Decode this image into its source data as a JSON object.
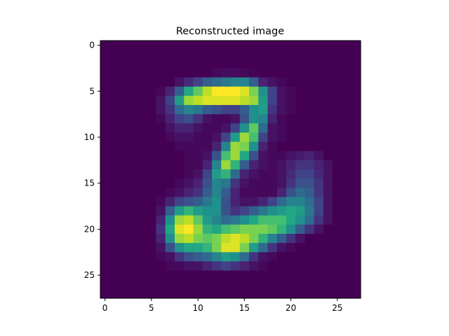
{
  "chart_data": {
    "type": "heatmap",
    "title": "Reconstructed image",
    "xlabel": "",
    "ylabel": "",
    "rows": 28,
    "cols": 28,
    "xlim": [
      -0.5,
      27.5
    ],
    "ylim": [
      27.5,
      -0.5
    ],
    "xticks": [
      0,
      5,
      10,
      15,
      20,
      25
    ],
    "yticks": [
      0,
      5,
      10,
      15,
      20,
      25
    ],
    "colormap": "viridis",
    "vmin": 0,
    "vmax": 1,
    "grid": false,
    "values": [
      [
        0,
        0,
        0,
        0,
        0,
        0,
        0,
        0,
        0,
        0,
        0,
        0,
        0,
        0,
        0,
        0,
        0,
        0,
        0,
        0,
        0,
        0,
        0,
        0,
        0,
        0,
        0,
        0
      ],
      [
        0,
        0,
        0,
        0,
        0,
        0,
        0,
        0,
        0,
        0,
        0,
        0,
        0,
        0,
        0,
        0,
        0,
        0,
        0,
        0,
        0,
        0,
        0,
        0,
        0,
        0,
        0,
        0
      ],
      [
        0,
        0,
        0,
        0,
        0,
        0,
        0,
        0,
        0,
        0,
        0,
        0,
        0,
        0,
        0,
        0,
        0,
        0,
        0,
        0,
        0,
        0,
        0,
        0,
        0,
        0,
        0,
        0
      ],
      [
        0,
        0,
        0,
        0,
        0,
        0,
        0,
        0,
        0,
        0,
        0,
        0,
        0.02,
        0.03,
        0.03,
        0.02,
        0.01,
        0,
        0,
        0,
        0,
        0,
        0,
        0,
        0,
        0,
        0,
        0
      ],
      [
        0,
        0,
        0,
        0,
        0,
        0,
        0,
        0,
        0.05,
        0.12,
        0.2,
        0.3,
        0.35,
        0.4,
        0.45,
        0.45,
        0.3,
        0.1,
        0.05,
        0.02,
        0,
        0,
        0,
        0,
        0,
        0,
        0,
        0
      ],
      [
        0,
        0,
        0,
        0,
        0,
        0,
        0.02,
        0.1,
        0.3,
        0.6,
        0.75,
        0.9,
        1,
        1,
        1,
        0.95,
        0.8,
        0.5,
        0.2,
        0.05,
        0.02,
        0,
        0,
        0,
        0,
        0,
        0,
        0
      ],
      [
        0,
        0,
        0,
        0,
        0,
        0,
        0.05,
        0.2,
        0.55,
        0.85,
        0.9,
        0.95,
        0.95,
        0.95,
        0.95,
        0.9,
        0.85,
        0.55,
        0.2,
        0.05,
        0.02,
        0,
        0,
        0,
        0,
        0,
        0,
        0
      ],
      [
        0,
        0,
        0,
        0,
        0,
        0,
        0.05,
        0.15,
        0.35,
        0.45,
        0.4,
        0.3,
        0.25,
        0.2,
        0.2,
        0.3,
        0.5,
        0.55,
        0.15,
        0.05,
        0.02,
        0,
        0,
        0,
        0,
        0,
        0,
        0
      ],
      [
        0,
        0,
        0,
        0,
        0,
        0,
        0.02,
        0.1,
        0.2,
        0.25,
        0.15,
        0.05,
        0.02,
        0.02,
        0.05,
        0.25,
        0.5,
        0.45,
        0.1,
        0.02,
        0,
        0,
        0,
        0,
        0,
        0,
        0,
        0
      ],
      [
        0,
        0,
        0,
        0,
        0,
        0,
        0,
        0.05,
        0.1,
        0.1,
        0.05,
        0.02,
        0.02,
        0.05,
        0.2,
        0.5,
        0.75,
        0.35,
        0.05,
        0.02,
        0,
        0,
        0,
        0,
        0,
        0,
        0,
        0
      ],
      [
        0,
        0,
        0,
        0,
        0,
        0,
        0,
        0.02,
        0.05,
        0.05,
        0.02,
        0.02,
        0.05,
        0.2,
        0.55,
        0.85,
        0.7,
        0.2,
        0.05,
        0.02,
        0,
        0,
        0,
        0,
        0,
        0,
        0,
        0
      ],
      [
        0,
        0,
        0,
        0,
        0,
        0,
        0,
        0,
        0.02,
        0.02,
        0.02,
        0.02,
        0.1,
        0.45,
        0.85,
        0.8,
        0.5,
        0.1,
        0.02,
        0,
        0,
        0,
        0,
        0,
        0,
        0,
        0,
        0
      ],
      [
        0,
        0,
        0,
        0,
        0,
        0,
        0,
        0,
        0,
        0.02,
        0.02,
        0.05,
        0.25,
        0.7,
        0.85,
        0.6,
        0.25,
        0.05,
        0.02,
        0.02,
        0.05,
        0.08,
        0.1,
        0.05,
        0,
        0,
        0,
        0
      ],
      [
        0,
        0,
        0,
        0,
        0,
        0,
        0,
        0,
        0,
        0.02,
        0.02,
        0.1,
        0.45,
        0.85,
        0.65,
        0.3,
        0.1,
        0.05,
        0.02,
        0.05,
        0.1,
        0.15,
        0.15,
        0.1,
        0.05,
        0,
        0,
        0
      ],
      [
        0,
        0,
        0,
        0,
        0,
        0,
        0,
        0,
        0,
        0.02,
        0.05,
        0.2,
        0.55,
        0.65,
        0.35,
        0.1,
        0.05,
        0.02,
        0.02,
        0.05,
        0.12,
        0.2,
        0.2,
        0.12,
        0.05,
        0,
        0,
        0
      ],
      [
        0,
        0,
        0,
        0,
        0,
        0,
        0,
        0,
        0.02,
        0.05,
        0.1,
        0.25,
        0.45,
        0.4,
        0.15,
        0.05,
        0.02,
        0.02,
        0.02,
        0.05,
        0.15,
        0.25,
        0.25,
        0.15,
        0.05,
        0,
        0,
        0
      ],
      [
        0,
        0,
        0,
        0,
        0,
        0,
        0,
        0.02,
        0.05,
        0.1,
        0.15,
        0.3,
        0.45,
        0.3,
        0.1,
        0.02,
        0.02,
        0.02,
        0.02,
        0.1,
        0.25,
        0.35,
        0.3,
        0.15,
        0.05,
        0,
        0,
        0
      ],
      [
        0,
        0,
        0,
        0,
        0,
        0,
        0.02,
        0.1,
        0.2,
        0.25,
        0.3,
        0.4,
        0.5,
        0.25,
        0.1,
        0.05,
        0.05,
        0.1,
        0.2,
        0.35,
        0.45,
        0.45,
        0.35,
        0.2,
        0.05,
        0,
        0,
        0
      ],
      [
        0,
        0,
        0,
        0,
        0,
        0,
        0.05,
        0.3,
        0.55,
        0.65,
        0.55,
        0.5,
        0.5,
        0.25,
        0.15,
        0.2,
        0.3,
        0.4,
        0.5,
        0.55,
        0.6,
        0.55,
        0.4,
        0.2,
        0.05,
        0,
        0,
        0
      ],
      [
        0,
        0,
        0,
        0,
        0,
        0,
        0.1,
        0.5,
        0.85,
        0.9,
        0.75,
        0.55,
        0.45,
        0.35,
        0.4,
        0.5,
        0.6,
        0.7,
        0.7,
        0.7,
        0.6,
        0.5,
        0.35,
        0.15,
        0.05,
        0,
        0,
        0
      ],
      [
        0,
        0,
        0,
        0,
        0,
        0,
        0.15,
        0.6,
        0.95,
        1,
        0.85,
        0.65,
        0.6,
        0.7,
        0.75,
        0.8,
        0.8,
        0.8,
        0.75,
        0.65,
        0.5,
        0.3,
        0.15,
        0.05,
        0,
        0,
        0,
        0
      ],
      [
        0,
        0,
        0,
        0,
        0,
        0,
        0.1,
        0.5,
        0.85,
        0.9,
        0.8,
        0.75,
        0.8,
        0.9,
        0.95,
        0.9,
        0.8,
        0.65,
        0.45,
        0.3,
        0.15,
        0.05,
        0,
        0,
        0,
        0,
        0,
        0
      ],
      [
        0,
        0,
        0,
        0,
        0,
        0,
        0.05,
        0.25,
        0.5,
        0.6,
        0.6,
        0.65,
        0.8,
        0.95,
        0.95,
        0.8,
        0.55,
        0.35,
        0.15,
        0.05,
        0.02,
        0,
        0,
        0,
        0,
        0,
        0,
        0
      ],
      [
        0,
        0,
        0,
        0,
        0,
        0,
        0.02,
        0.05,
        0.15,
        0.25,
        0.3,
        0.35,
        0.45,
        0.55,
        0.5,
        0.35,
        0.15,
        0.05,
        0.02,
        0,
        0,
        0,
        0,
        0,
        0,
        0,
        0,
        0
      ],
      [
        0,
        0,
        0,
        0,
        0,
        0,
        0,
        0.02,
        0.02,
        0.05,
        0.05,
        0.1,
        0.15,
        0.2,
        0.15,
        0.1,
        0.05,
        0.02,
        0,
        0,
        0,
        0,
        0,
        0,
        0,
        0,
        0,
        0
      ],
      [
        0,
        0,
        0,
        0,
        0,
        0,
        0,
        0,
        0,
        0,
        0,
        0,
        0,
        0,
        0,
        0,
        0,
        0,
        0,
        0,
        0,
        0,
        0,
        0,
        0,
        0,
        0,
        0
      ],
      [
        0,
        0,
        0,
        0,
        0,
        0,
        0,
        0,
        0,
        0,
        0,
        0,
        0,
        0,
        0,
        0,
        0,
        0,
        0,
        0,
        0,
        0,
        0,
        0,
        0,
        0,
        0,
        0
      ],
      [
        0,
        0,
        0,
        0,
        0,
        0,
        0,
        0,
        0,
        0,
        0,
        0,
        0,
        0,
        0,
        0,
        0,
        0,
        0,
        0,
        0,
        0,
        0,
        0,
        0,
        0,
        0,
        0
      ]
    ]
  }
}
